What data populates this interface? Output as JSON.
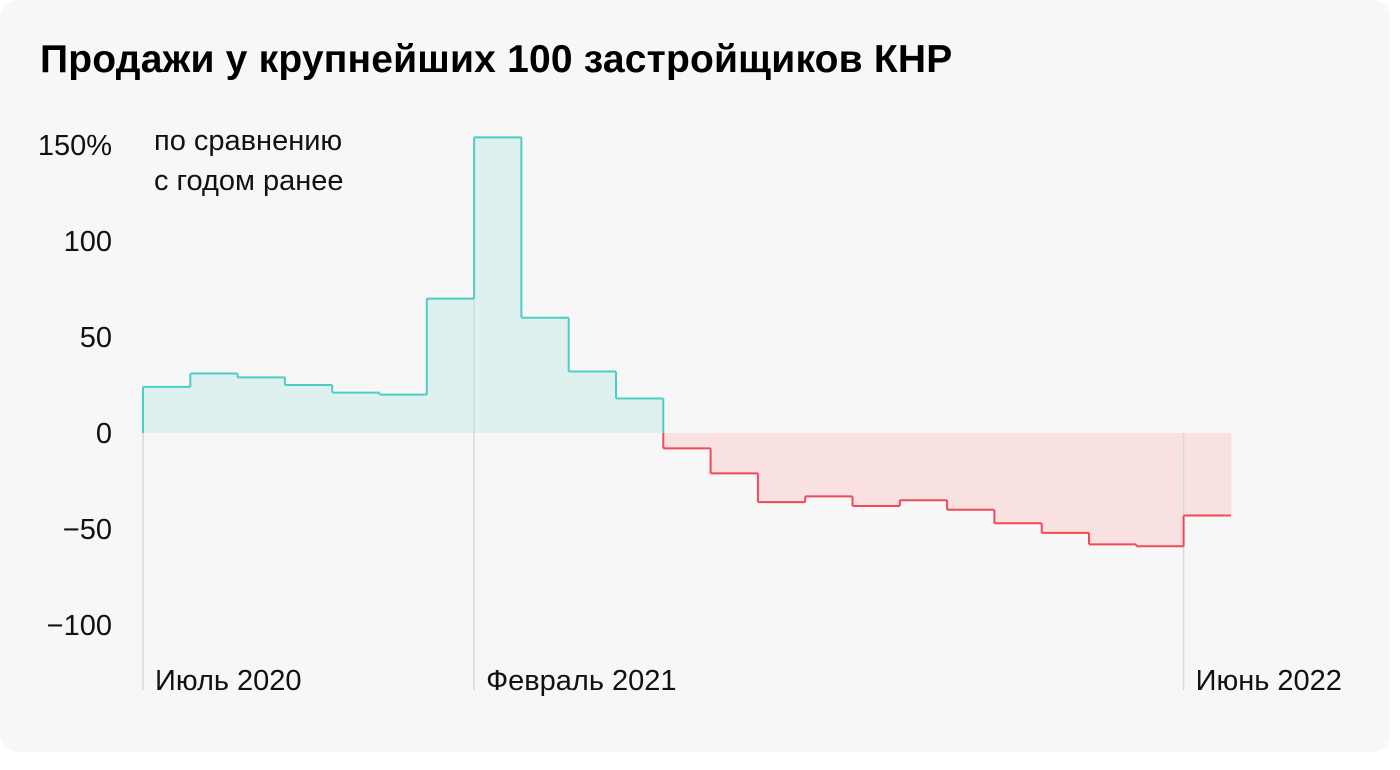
{
  "title": "Продажи у крупнейших 100 застройщиков КНР",
  "colors": {
    "positive_line": "#4ecdc4",
    "positive_fill": "#dff1ef",
    "negative_line": "#ef4a55",
    "negative_fill": "#f9e1e1",
    "guide": "#d8d8d8",
    "background": "#f7f7f7"
  },
  "chart_data": {
    "type": "step-area",
    "title": "Продажи у крупнейших 100 застройщиков КНР",
    "y_unit_label": [
      "по сравнению",
      "с годом ранее"
    ],
    "ylim": [
      -120,
      155
    ],
    "y_ticks": [
      {
        "value": 150,
        "label": "150%"
      },
      {
        "value": 100,
        "label": "100"
      },
      {
        "value": 50,
        "label": "50"
      },
      {
        "value": 0,
        "label": "0"
      },
      {
        "value": -50,
        "label": "−50"
      },
      {
        "value": -100,
        "label": "−100"
      }
    ],
    "x_labels": [
      {
        "index": 0,
        "label": "Июль 2020"
      },
      {
        "index": 7,
        "label": "Февраль 2021"
      },
      {
        "index": 22,
        "label": "Июнь 2022"
      }
    ],
    "values": [
      24,
      31,
      29,
      25,
      21,
      20,
      70,
      154,
      60,
      32,
      18,
      -8,
      -21,
      -36,
      -33,
      -38,
      -35,
      -40,
      -47,
      -52,
      -58,
      -59,
      -43
    ],
    "grid": false,
    "legend": "none"
  }
}
